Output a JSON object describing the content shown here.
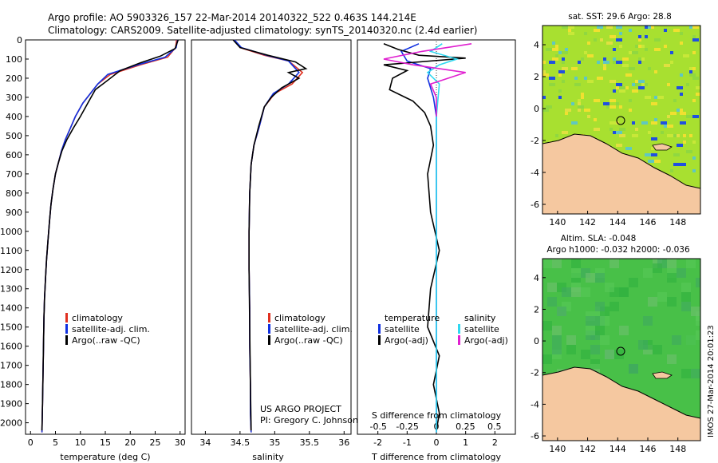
{
  "title": {
    "line1": "Argo profile: AO 5903326_157 22-Mar-2014 20140322_522 0.463S 144.214E",
    "line2": "Climatology: CARS2009. Satellite-adjusted climatology: synTS_20140320.nc (2.4d earlier)"
  },
  "depth_ticks": [
    "0",
    "100",
    "200",
    "300",
    "400",
    "500",
    "600",
    "700",
    "800",
    "900",
    "1000",
    "1100",
    "1200",
    "1300",
    "1400",
    "1500",
    "1600",
    "1700",
    "1800",
    "1900",
    "2000"
  ],
  "colors": {
    "climatology": "#e03020",
    "satellite": "#1030e0",
    "argo": "#000000",
    "sal_sat": "#30d8f0",
    "sal_argo": "#e020d0",
    "land": "#f5c8a0",
    "sst_base": "#a8e030",
    "sla_base": "#40c040"
  },
  "panels": {
    "temperature": {
      "xlabel": "temperature (deg C)",
      "x_ticks": [
        "0",
        "5",
        "10",
        "15",
        "20",
        "25",
        "30"
      ],
      "legend": [
        "climatology",
        "satellite-adj. clim.",
        "Argo(..raw -QC)"
      ]
    },
    "salinity": {
      "xlabel": "salinity",
      "x_ticks": [
        "34",
        "34.5",
        "35",
        "35.5",
        "36"
      ],
      "legend": [
        "climatology",
        "satellite-adj. clim.",
        "Argo(..raw -QC)"
      ],
      "project": "US ARGO PROJECT",
      "pi": "PI: Gregory C. Johnson"
    },
    "difference": {
      "xlabel": "T difference from climatology",
      "x_ticks": [
        "-2",
        "-1",
        "0",
        "1",
        "2"
      ],
      "top_label": "S difference from climatology",
      "top_ticks": [
        "-0.5",
        "-0.25",
        "0",
        "0.25",
        "0.5"
      ],
      "legend_temp_header": "temperature",
      "legend_sal_header": "salinity",
      "legend_temp": [
        "satellite",
        "Argo(-adj)"
      ],
      "legend_sal": [
        "satellite",
        "Argo(-adj)"
      ]
    },
    "sst_map": {
      "title": "sat. SST: 29.6 Argo: 28.8",
      "y_ticks": [
        "4",
        "2",
        "0",
        "-2",
        "-4",
        "-6"
      ],
      "x_ticks": [
        "140",
        "142",
        "144",
        "146",
        "148"
      ]
    },
    "sla_map": {
      "title1": "Altim. SLA: -0.048",
      "title2": "Argo h1000: -0.032 h2000: -0.036",
      "y_ticks": [
        "4",
        "2",
        "0",
        "-2",
        "-4",
        "-6"
      ],
      "x_ticks": [
        "140",
        "142",
        "144",
        "146",
        "148"
      ]
    }
  },
  "side_text": "IMOS 27-Mar-2014 20:01:23",
  "chart_data": [
    {
      "type": "line",
      "name": "temperature-profile",
      "xlabel": "temperature (deg C)",
      "ylabel": "depth",
      "xlim": [
        -1,
        31
      ],
      "ylim": [
        2060,
        0
      ],
      "series": [
        {
          "name": "climatology",
          "x": [
            29.3,
            29.1,
            27.5,
            22,
            16,
            13.5,
            12,
            10.5,
            9,
            8,
            7,
            6.2,
            5.6,
            5,
            4.5,
            4.1,
            3.8,
            3.5,
            3.2,
            3,
            2.8,
            2.7,
            2.6,
            2.5,
            2.4,
            2.3
          ],
          "y": [
            0,
            40,
            90,
            130,
            180,
            230,
            280,
            330,
            400,
            460,
            520,
            580,
            640,
            700,
            780,
            860,
            950,
            1050,
            1150,
            1250,
            1350,
            1450,
            1600,
            1750,
            1900,
            2050
          ]
        },
        {
          "name": "satellite-adj. clim.",
          "x": [
            29.5,
            29.2,
            27,
            21.5,
            15.5,
            13.5,
            12,
            10.5,
            9,
            8,
            7,
            6.2,
            5.6,
            5,
            4.5,
            4.1,
            3.8,
            3.5,
            3.2,
            3,
            2.8,
            2.7,
            2.6,
            2.5,
            2.4,
            2.3
          ],
          "y": [
            0,
            40,
            90,
            130,
            180,
            230,
            280,
            330,
            400,
            460,
            520,
            580,
            640,
            700,
            780,
            860,
            950,
            1050,
            1150,
            1250,
            1350,
            1450,
            1600,
            1750,
            1900,
            2050
          ]
        },
        {
          "name": "Argo(..raw -QC)",
          "x": [
            29.6,
            29.0,
            26,
            22,
            18,
            14.5,
            13,
            11.5,
            10,
            8.6,
            7.3,
            6.3,
            5.6,
            5.0,
            4.5,
            4.1,
            3.8,
            3.5,
            3.2,
            3.0,
            2.8,
            2.7,
            2.6,
            2.5,
            2.4,
            2.3
          ],
          "y": [
            0,
            45,
            85,
            120,
            160,
            230,
            260,
            330,
            400,
            460,
            520,
            580,
            640,
            700,
            780,
            860,
            950,
            1050,
            1150,
            1250,
            1350,
            1450,
            1600,
            1750,
            1900,
            2040
          ]
        }
      ]
    },
    {
      "type": "line",
      "name": "salinity-profile",
      "xlabel": "salinity",
      "ylabel": "depth",
      "xlim": [
        33.8,
        36.1
      ],
      "ylim": [
        2060,
        0
      ],
      "series": [
        {
          "name": "climatology",
          "x": [
            34.42,
            34.5,
            34.85,
            35.2,
            35.4,
            35.25,
            35.0,
            34.85,
            34.78,
            34.7,
            34.66,
            34.64,
            34.63,
            34.63,
            34.64,
            34.64,
            34.65,
            34.65,
            34.66
          ],
          "y": [
            0,
            40,
            80,
            110,
            170,
            230,
            280,
            350,
            450,
            550,
            650,
            800,
            1000,
            1200,
            1400,
            1600,
            1800,
            1950,
            2050
          ]
        },
        {
          "name": "satellite-adj. clim.",
          "x": [
            34.42,
            34.52,
            34.88,
            35.2,
            35.35,
            35.2,
            34.98,
            34.85,
            34.78,
            34.7,
            34.66,
            34.64,
            34.63,
            34.63,
            34.64,
            34.64,
            34.65,
            34.65,
            34.66
          ],
          "y": [
            0,
            40,
            80,
            110,
            170,
            230,
            280,
            350,
            450,
            550,
            650,
            800,
            1000,
            1200,
            1400,
            1600,
            1800,
            1950,
            2050
          ]
        },
        {
          "name": "Argo(..raw -QC)",
          "x": [
            34.4,
            34.5,
            34.9,
            35.3,
            35.45,
            35.2,
            35.35,
            35.1,
            34.95,
            34.85,
            34.77,
            34.7,
            34.66,
            34.64,
            34.63,
            34.63,
            34.64,
            34.65,
            34.66
          ],
          "y": [
            0,
            40,
            80,
            115,
            150,
            170,
            200,
            250,
            300,
            350,
            450,
            550,
            650,
            800,
            1000,
            1200,
            1500,
            1800,
            2040
          ]
        }
      ]
    },
    {
      "type": "line",
      "name": "difference-profile",
      "xlabel": "T difference from climatology",
      "ylabel": "depth",
      "xlim": [
        -2.7,
        2.7
      ],
      "ylim": [
        2060,
        0
      ],
      "series": [
        {
          "name": "temperature satellite",
          "x": [
            -0.6,
            -1.2,
            -1.0,
            -0.2,
            -0.3,
            -0.1,
            0,
            0,
            0
          ],
          "y": [
            20,
            60,
            110,
            150,
            200,
            300,
            400,
            600,
            2050
          ]
        },
        {
          "name": "temperature Argo(-adj)",
          "x": [
            -1.8,
            -1.3,
            -0.6,
            1.0,
            -1.8,
            -1.0,
            -1.5,
            -1.6,
            -0.8,
            -0.4,
            -0.2,
            -0.1,
            -0.3,
            -0.2,
            0.1,
            -0.2,
            -0.3,
            0.1,
            -0.1,
            0.1,
            0
          ],
          "y": [
            20,
            50,
            80,
            95,
            130,
            160,
            200,
            260,
            320,
            380,
            450,
            550,
            700,
            900,
            1100,
            1300,
            1500,
            1650,
            1800,
            1950,
            2040
          ]
        },
        {
          "name": "salinity satellite",
          "x": [
            0.2,
            -0.2,
            0.7,
            0.1,
            -0.3,
            0.1,
            0,
            0
          ],
          "y": [
            20,
            60,
            100,
            130,
            170,
            230,
            400,
            2050
          ]
        },
        {
          "name": "salinity Argo(-adj)",
          "x": [
            1.2,
            -0.5,
            -1.8,
            -0.8,
            1.0,
            -0.2,
            0,
            0
          ],
          "y": [
            20,
            60,
            100,
            130,
            170,
            230,
            300,
            400
          ]
        }
      ]
    }
  ]
}
